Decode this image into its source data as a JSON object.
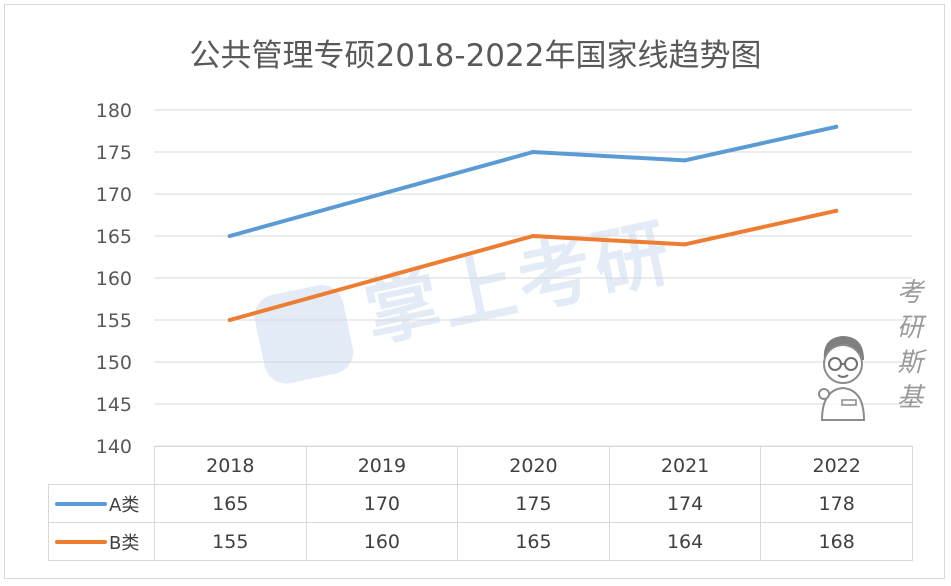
{
  "chart_data": {
    "type": "line",
    "title": "公共管理专硕2018-2022年国家线趋势图",
    "categories": [
      "2018",
      "2019",
      "2020",
      "2021",
      "2022"
    ],
    "series": [
      {
        "name": "A类",
        "color": "#5b9bd5",
        "values": [
          165,
          170,
          175,
          174,
          178
        ]
      },
      {
        "name": "B类",
        "color": "#ed7d31",
        "values": [
          155,
          160,
          165,
          164,
          168
        ]
      }
    ],
    "ylim": [
      140,
      180
    ],
    "yticks": [
      "180",
      "175",
      "170",
      "165",
      "160",
      "155",
      "150",
      "145",
      "140"
    ],
    "grid": true,
    "legend": "data-table"
  },
  "watermark": {
    "text": "掌上考研",
    "brand": "考研斯基"
  }
}
